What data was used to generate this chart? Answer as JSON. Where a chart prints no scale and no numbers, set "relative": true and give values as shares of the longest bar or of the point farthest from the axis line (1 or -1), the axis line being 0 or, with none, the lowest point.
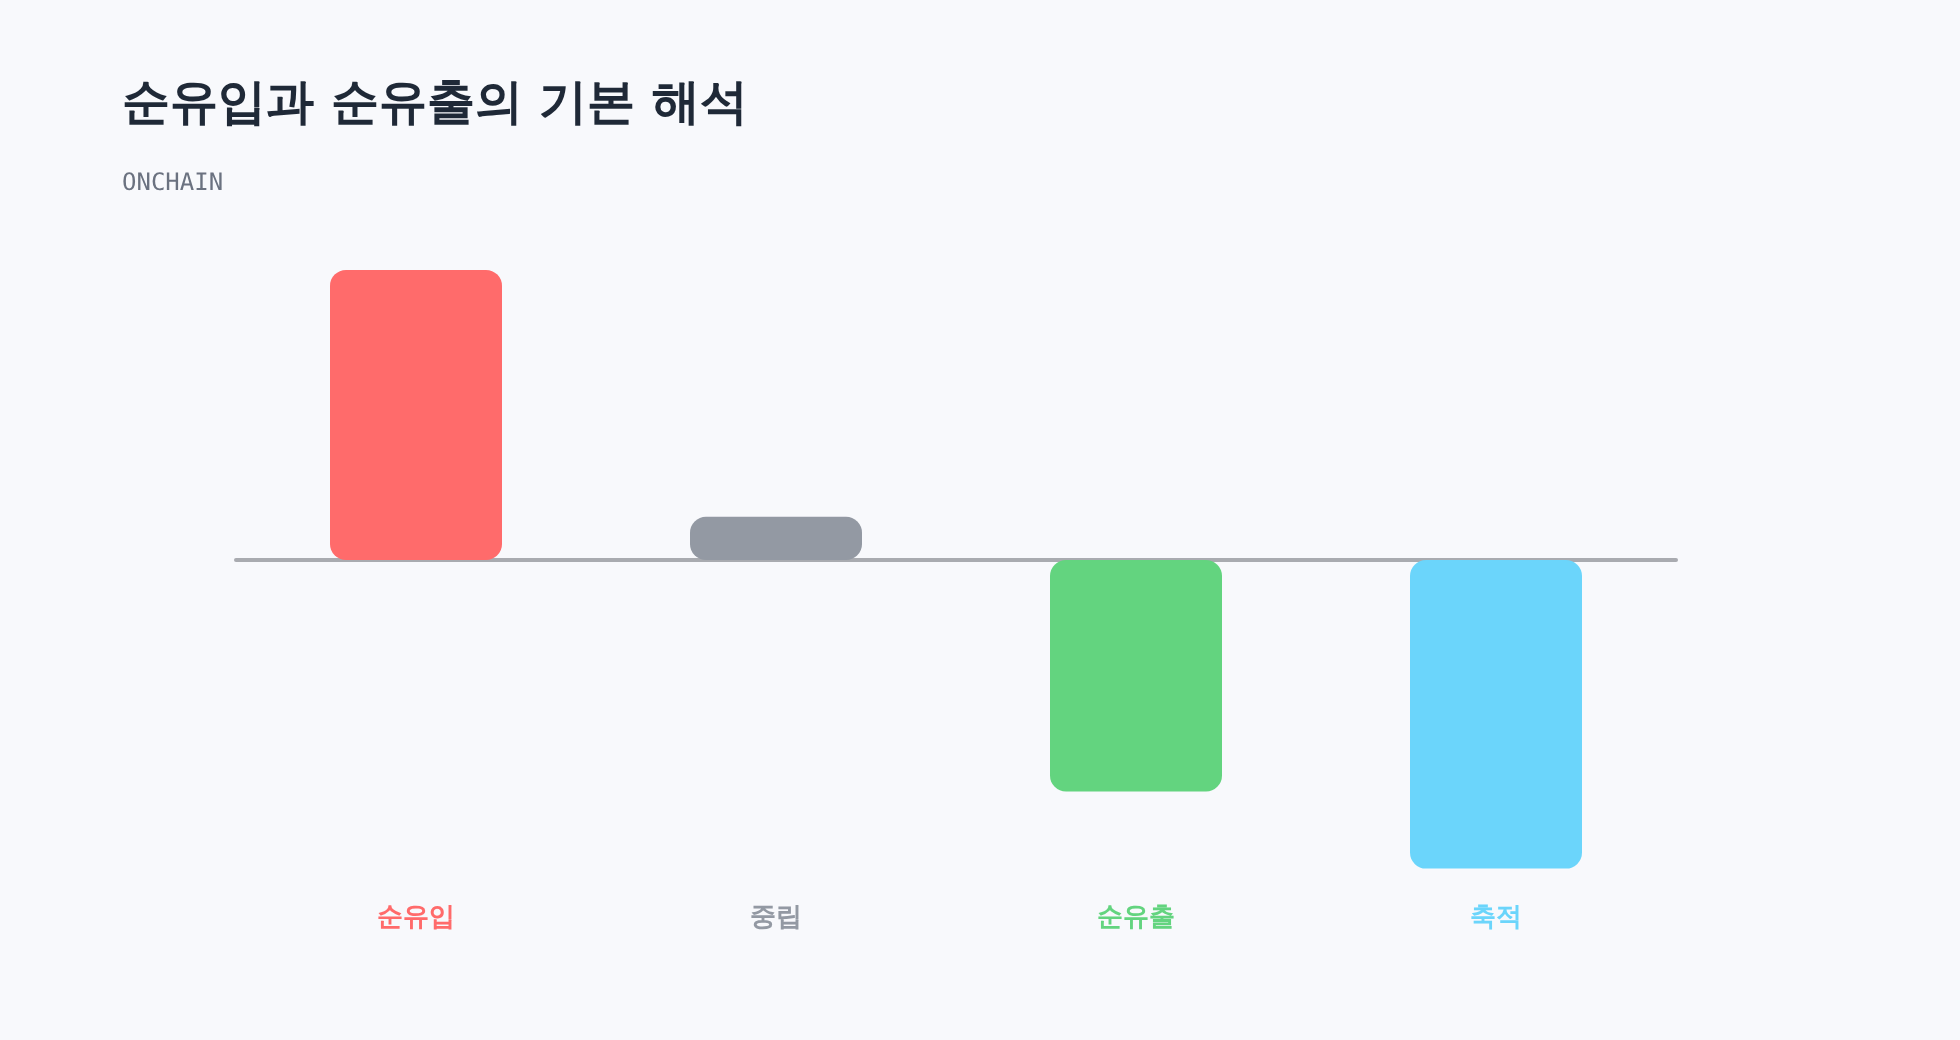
{
  "chart_data": {
    "type": "bar",
    "title": "순유입과 순유출의 기본 해석",
    "subtitle": "ONCHAIN",
    "categories": [
      "순유입",
      "중립",
      "순유출",
      "축적"
    ],
    "values": [
      0.94,
      0.14,
      -0.75,
      -1
    ],
    "colors": [
      "#ff6b6b",
      "#9399a3",
      "#63d47f",
      "#6bd5fb"
    ],
    "relative": true
  }
}
